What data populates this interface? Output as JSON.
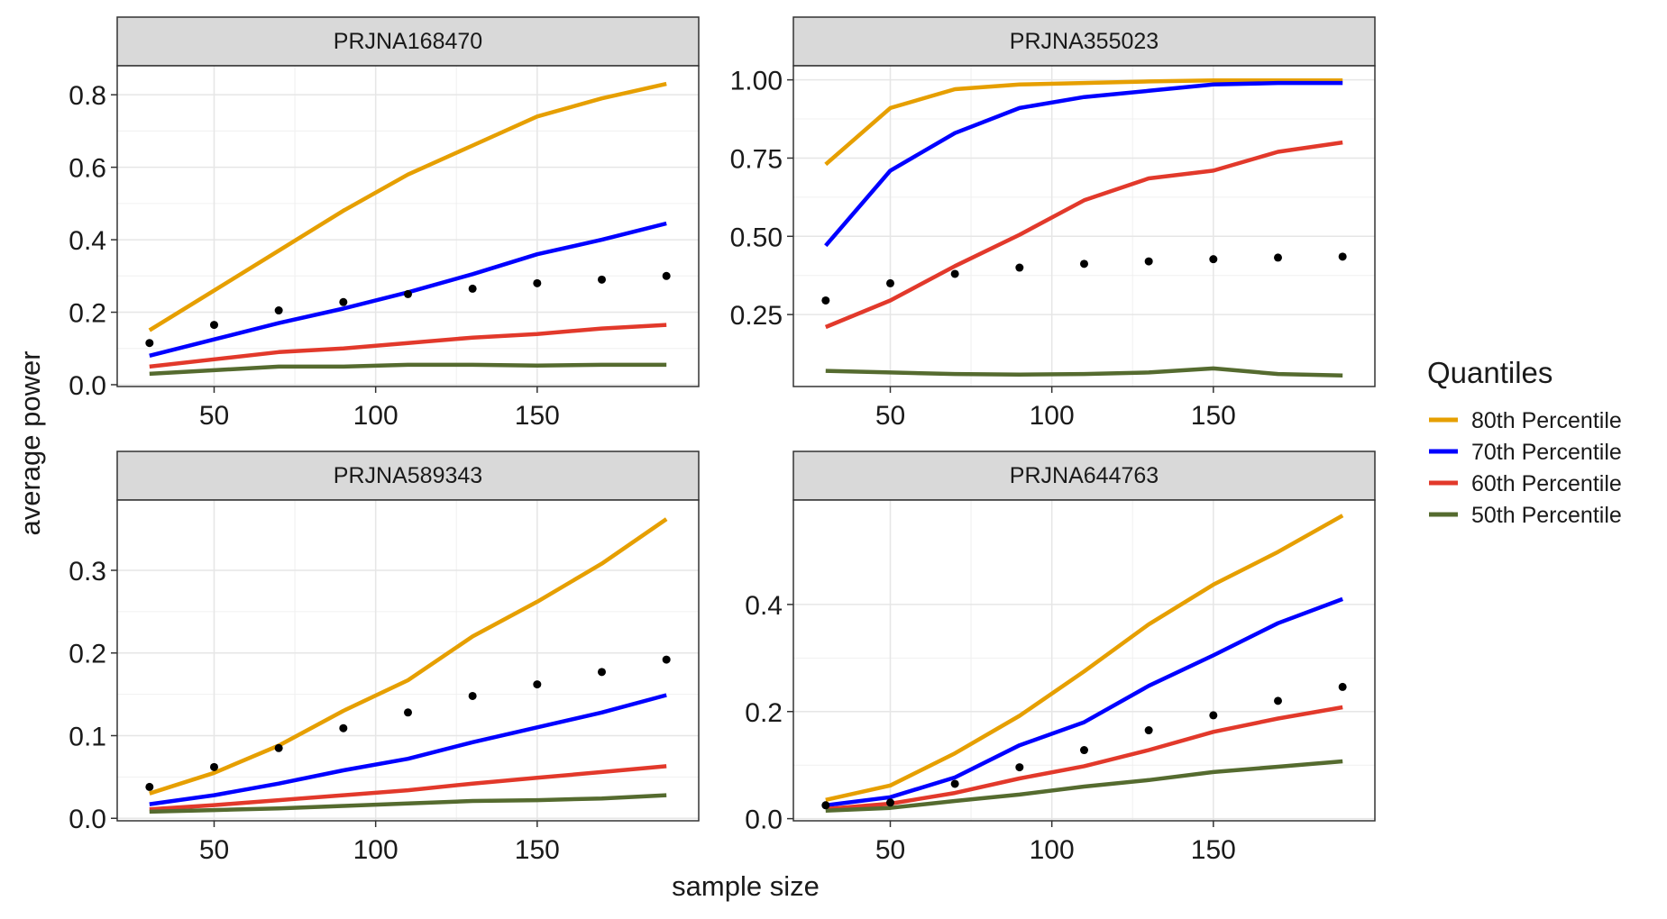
{
  "chart_data": {
    "type": "line",
    "xlabel": "sample size",
    "ylabel": "average power",
    "x": [
      30,
      50,
      70,
      90,
      110,
      130,
      150,
      170,
      190
    ],
    "xticks": [
      50,
      100,
      150
    ],
    "xlim": [
      20,
      200
    ],
    "grid": true,
    "legend": {
      "title": "Quantiles",
      "placement": "right",
      "entries": [
        {
          "name": "80th Percentile",
          "color": "#E69F00"
        },
        {
          "name": "70th Percentile",
          "color": "#0000FF"
        },
        {
          "name": "60th Percentile",
          "color": "#E2392B"
        },
        {
          "name": "50th Percentile",
          "color": "#556B2F"
        }
      ]
    },
    "panels": [
      {
        "title": "PRJNA168470",
        "ylim": [
          -0.005,
          0.88
        ],
        "yticks": [
          0.0,
          0.2,
          0.4,
          0.6,
          0.8
        ],
        "ytick_labels": [
          "0.0",
          "0.2",
          "0.4",
          "0.6",
          "0.8"
        ],
        "series": [
          {
            "name": "80th Percentile",
            "values": [
              0.15,
              0.26,
              0.37,
              0.48,
              0.58,
              0.66,
              0.74,
              0.79,
              0.83
            ]
          },
          {
            "name": "70th Percentile",
            "values": [
              0.08,
              0.125,
              0.17,
              0.21,
              0.255,
              0.305,
              0.36,
              0.4,
              0.445
            ]
          },
          {
            "name": "60th Percentile",
            "values": [
              0.05,
              0.07,
              0.09,
              0.1,
              0.115,
              0.13,
              0.14,
              0.155,
              0.165
            ]
          },
          {
            "name": "50th Percentile",
            "values": [
              0.03,
              0.04,
              0.05,
              0.05,
              0.055,
              0.055,
              0.053,
              0.055,
              0.055
            ]
          }
        ],
        "points": [
          0.115,
          0.165,
          0.205,
          0.228,
          0.25,
          0.265,
          0.28,
          0.29,
          0.3
        ]
      },
      {
        "title": "PRJNA355023",
        "ylim": [
          0.02,
          1.045
        ],
        "yticks": [
          0.25,
          0.5,
          0.75,
          1.0
        ],
        "ytick_labels": [
          "0.25",
          "0.50",
          "0.75",
          "1.00"
        ],
        "series": [
          {
            "name": "80th Percentile",
            "values": [
              0.73,
              0.91,
              0.97,
              0.985,
              0.99,
              0.995,
              0.998,
              0.998,
              0.998
            ]
          },
          {
            "name": "70th Percentile",
            "values": [
              0.47,
              0.71,
              0.83,
              0.91,
              0.945,
              0.965,
              0.985,
              0.99,
              0.99
            ]
          },
          {
            "name": "60th Percentile",
            "values": [
              0.21,
              0.295,
              0.405,
              0.505,
              0.615,
              0.685,
              0.71,
              0.77,
              0.8
            ]
          },
          {
            "name": "50th Percentile",
            "values": [
              0.07,
              0.065,
              0.06,
              0.058,
              0.06,
              0.065,
              0.078,
              0.06,
              0.055
            ]
          }
        ],
        "points": [
          0.295,
          0.35,
          0.38,
          0.4,
          0.412,
          0.42,
          0.427,
          0.432,
          0.435
        ]
      },
      {
        "title": "PRJNA589343",
        "ylim": [
          -0.003,
          0.385
        ],
        "yticks": [
          0.0,
          0.1,
          0.2,
          0.3
        ],
        "ytick_labels": [
          "0.0",
          "0.1",
          "0.2",
          "0.3"
        ],
        "series": [
          {
            "name": "80th Percentile",
            "values": [
              0.03,
              0.055,
              0.088,
              0.13,
              0.167,
              0.22,
              0.262,
              0.308,
              0.362
            ]
          },
          {
            "name": "70th Percentile",
            "values": [
              0.017,
              0.028,
              0.042,
              0.058,
              0.072,
              0.092,
              0.11,
              0.128,
              0.149
            ]
          },
          {
            "name": "60th Percentile",
            "values": [
              0.011,
              0.016,
              0.022,
              0.028,
              0.034,
              0.042,
              0.049,
              0.056,
              0.063
            ]
          },
          {
            "name": "50th Percentile",
            "values": [
              0.008,
              0.01,
              0.012,
              0.015,
              0.018,
              0.021,
              0.022,
              0.024,
              0.028
            ]
          }
        ],
        "points": [
          0.038,
          0.062,
          0.085,
          0.109,
          0.128,
          0.148,
          0.162,
          0.177,
          0.192
        ]
      },
      {
        "title": "PRJNA644763",
        "ylim": [
          -0.004,
          0.595
        ],
        "yticks": [
          0.0,
          0.2,
          0.4
        ],
        "ytick_labels": [
          "0.0",
          "0.2",
          "0.4"
        ],
        "series": [
          {
            "name": "80th Percentile",
            "values": [
              0.035,
              0.062,
              0.122,
              0.192,
              0.275,
              0.363,
              0.437,
              0.498,
              0.566
            ]
          },
          {
            "name": "70th Percentile",
            "values": [
              0.025,
              0.04,
              0.077,
              0.137,
              0.18,
              0.248,
              0.305,
              0.365,
              0.41
            ]
          },
          {
            "name": "60th Percentile",
            "values": [
              0.018,
              0.028,
              0.048,
              0.075,
              0.098,
              0.128,
              0.162,
              0.187,
              0.208
            ]
          },
          {
            "name": "50th Percentile",
            "values": [
              0.015,
              0.02,
              0.033,
              0.045,
              0.06,
              0.072,
              0.087,
              0.097,
              0.107
            ]
          }
        ],
        "points": [
          0.025,
          0.03,
          0.065,
          0.096,
          0.128,
          0.165,
          0.193,
          0.22,
          0.246
        ]
      }
    ]
  }
}
